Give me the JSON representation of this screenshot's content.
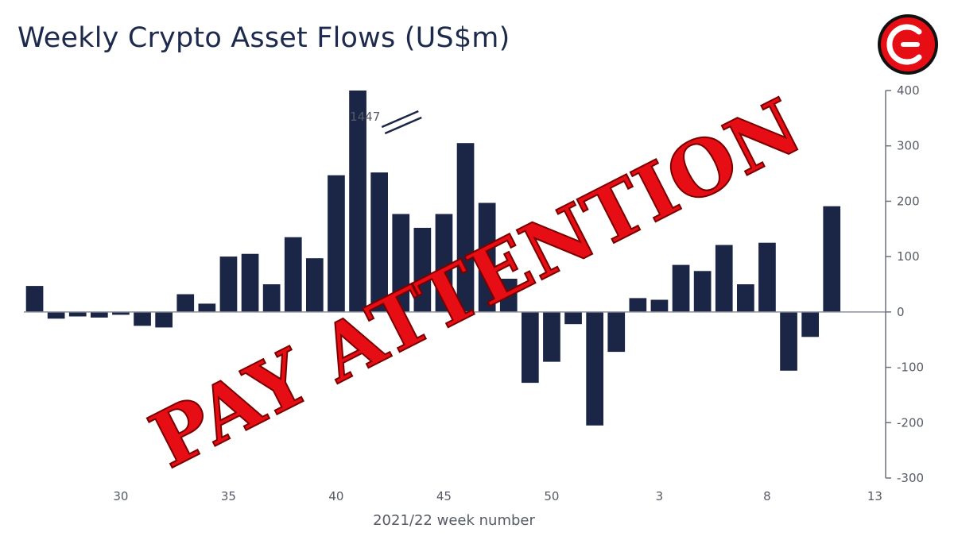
{
  "chart_data": {
    "type": "bar",
    "title": "Weekly Crypto Asset Flows (US$m)",
    "xlabel": "2021/22 week number",
    "ylabel": "",
    "ylim": [
      -300,
      400
    ],
    "yticks": [
      400,
      300,
      200,
      100,
      0,
      -100,
      -200,
      -300
    ],
    "xticks": [
      "30",
      "35",
      "40",
      "45",
      "50",
      "3",
      "8",
      "13"
    ],
    "y_axis_side": "right",
    "grid": false,
    "categories": [
      "26",
      "27",
      "28",
      "29",
      "30",
      "31",
      "32",
      "33",
      "34",
      "35",
      "36",
      "37",
      "38",
      "39",
      "40",
      "41",
      "42",
      "43",
      "44",
      "45",
      "46",
      "47",
      "48",
      "49",
      "50",
      "51",
      "52",
      "1",
      "2",
      "3",
      "4",
      "5",
      "6",
      "7",
      "8",
      "9",
      "10",
      "11",
      "12",
      "13"
    ],
    "values": [
      47,
      -12,
      -8,
      -10,
      -5,
      -25,
      -28,
      32,
      15,
      100,
      105,
      50,
      135,
      97,
      247,
      1447,
      252,
      177,
      152,
      177,
      305,
      197,
      60,
      -128,
      -90,
      -22,
      -205,
      -72,
      25,
      22,
      85,
      74,
      121,
      50,
      125,
      -106,
      -45,
      191,
      0,
      0
    ],
    "annotations": [
      {
        "text": "1447",
        "category": "43"
      }
    ]
  },
  "stamp": {
    "text": "PAY ATTENTION",
    "color": "#e60d14"
  },
  "logo": {
    "name": "brand-logo",
    "color": "#e60d14"
  }
}
